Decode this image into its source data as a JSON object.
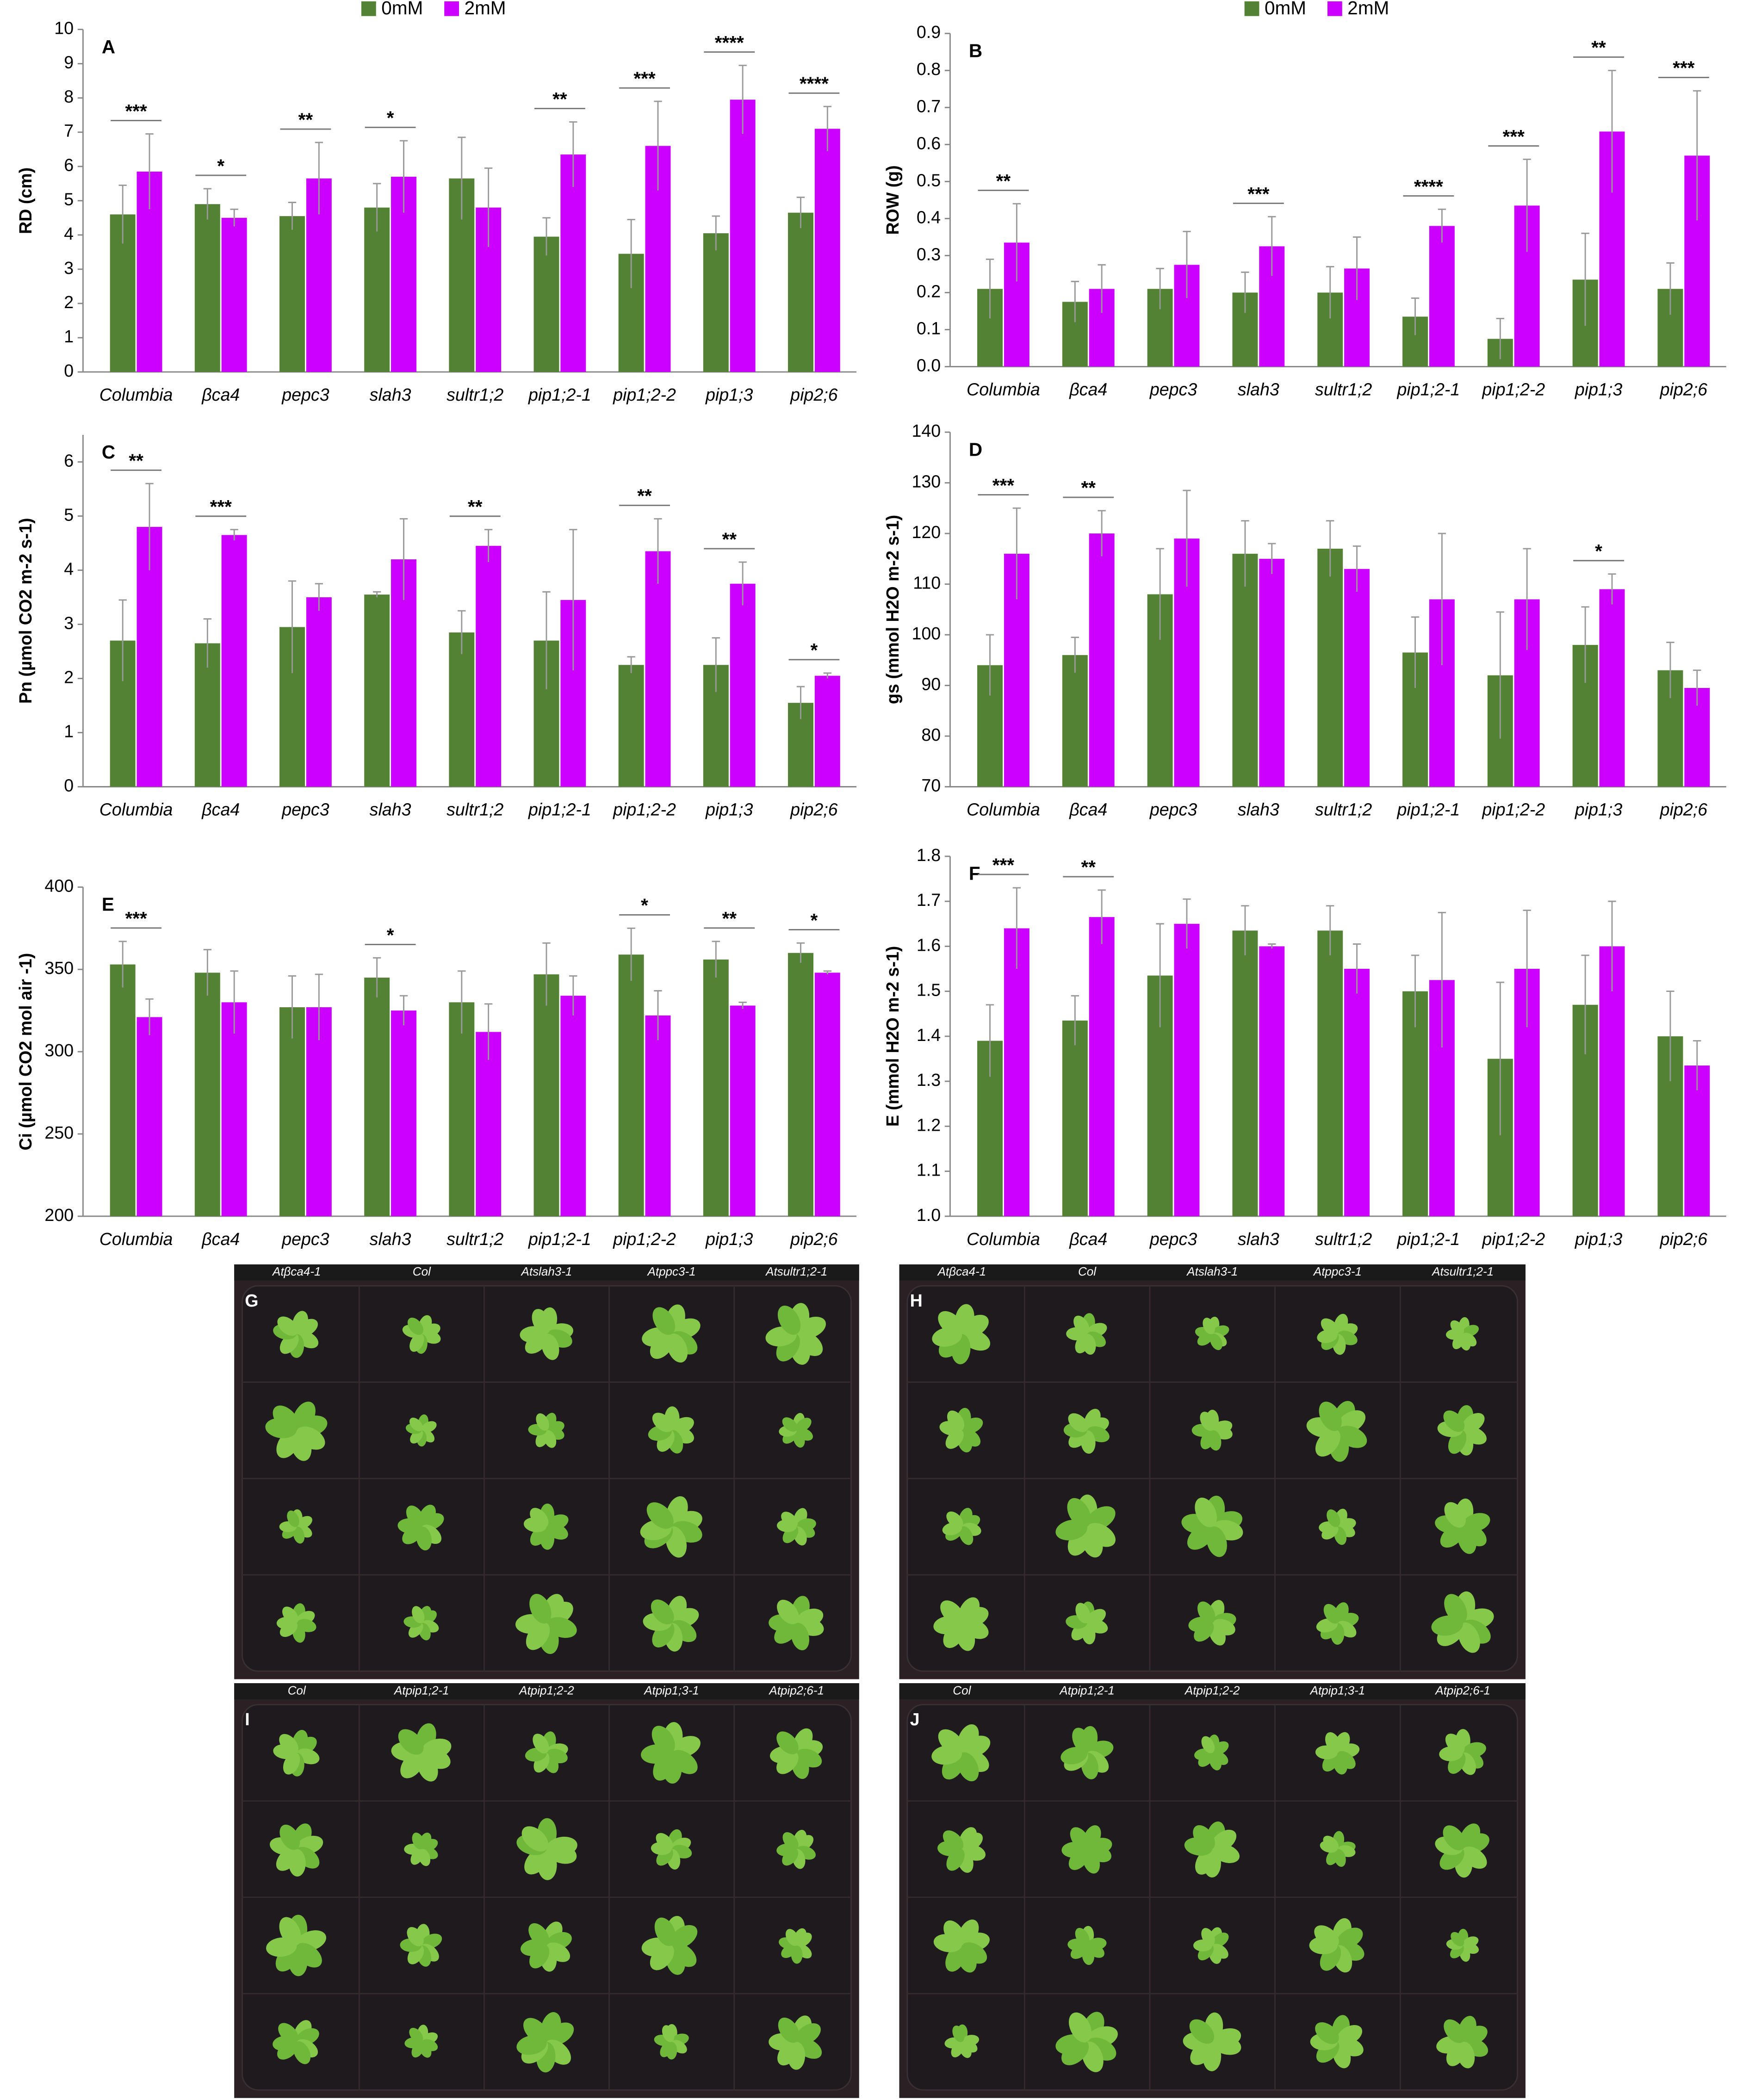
{
  "chart_data": [
    {
      "type": "bar",
      "title": "A",
      "y_label": "RD (cm)",
      "categories": [
        "Columbia",
        "βca4",
        "pepc3",
        "slah3",
        "sultr1;2",
        "pip1;2-1",
        "pip1;2-2",
        "pip1;3",
        "pip2;6"
      ],
      "series": [
        {
          "name": "0mM",
          "color": "#548235",
          "values": [
            4.6,
            4.9,
            4.55,
            4.8,
            5.65,
            3.95,
            3.45,
            4.05,
            4.65
          ],
          "errors": [
            0.85,
            0.45,
            0.4,
            0.7,
            1.2,
            0.55,
            1.0,
            0.5,
            0.45
          ]
        },
        {
          "name": "2mM",
          "color": "#cc00ff",
          "values": [
            5.85,
            4.5,
            5.65,
            5.7,
            4.8,
            6.35,
            6.6,
            7.95,
            7.1
          ],
          "errors": [
            1.1,
            0.25,
            1.05,
            1.05,
            1.15,
            0.95,
            1.3,
            1.0,
            0.65
          ]
        }
      ],
      "significance": [
        "***",
        "*",
        "**",
        "*",
        null,
        "**",
        "***",
        "****",
        "****"
      ],
      "ylim": [
        0,
        10
      ],
      "yticks": [
        0,
        1,
        2,
        3,
        4,
        5,
        6,
        7,
        8,
        9,
        10
      ]
    },
    {
      "type": "bar",
      "title": "B",
      "y_label": "ROW (g)",
      "categories": [
        "Columbia",
        "βca4",
        "pepc3",
        "slah3",
        "sultr1;2",
        "pip1;2-1",
        "pip1;2-2",
        "pip1;3",
        "pip2;6"
      ],
      "series": [
        {
          "name": "0mM",
          "color": "#548235",
          "values": [
            0.21,
            0.175,
            0.21,
            0.2,
            0.2,
            0.135,
            0.075,
            0.235,
            0.21
          ],
          "errors": [
            0.08,
            0.055,
            0.055,
            0.055,
            0.07,
            0.05,
            0.055,
            0.125,
            0.07
          ]
        },
        {
          "name": "2mM",
          "color": "#cc00ff",
          "values": [
            0.335,
            0.21,
            0.275,
            0.325,
            0.265,
            0.38,
            0.435,
            0.635,
            0.57
          ],
          "errors": [
            0.105,
            0.065,
            0.09,
            0.08,
            0.085,
            0.045,
            0.125,
            0.165,
            0.175
          ]
        }
      ],
      "significance": [
        "**",
        null,
        null,
        "***",
        null,
        "****",
        "***",
        "**",
        "***"
      ],
      "ylim": [
        0,
        0.9
      ],
      "yticks": [
        {
          "value": 0,
          "label": "0.0"
        },
        0.1,
        0.2,
        0.3,
        0.4,
        0.5,
        0.6,
        0.7,
        0.8,
        0.9
      ]
    },
    {
      "type": "bar",
      "title": "C",
      "y_label": "Pn (µmol CO2 m-2 s-1)",
      "categories": [
        "Columbia",
        "βca4",
        "pepc3",
        "slah3",
        "sultr1;2",
        "pip1;2-1",
        "pip1;2-2",
        "pip1;3",
        "pip2;6"
      ],
      "series": [
        {
          "color": "#548235",
          "values": [
            2.7,
            2.65,
            2.95,
            3.55,
            2.85,
            2.7,
            2.25,
            2.25,
            1.55
          ],
          "errors": [
            0.75,
            0.45,
            0.85,
            0.05,
            0.4,
            0.9,
            0.15,
            0.5,
            0.3
          ]
        },
        {
          "color": "#cc00ff",
          "values": [
            4.8,
            4.65,
            3.5,
            4.2,
            4.45,
            3.45,
            4.35,
            3.75,
            2.05
          ],
          "errors": [
            0.8,
            0.1,
            0.25,
            0.75,
            0.3,
            1.3,
            0.6,
            0.4,
            0.05
          ]
        }
      ],
      "significance": [
        "**",
        "***",
        null,
        null,
        "**",
        null,
        "**",
        "**",
        "*"
      ],
      "ylim": [
        0,
        6.5
      ],
      "yticks": [
        0,
        1,
        2,
        3,
        4,
        5,
        6
      ]
    },
    {
      "type": "bar",
      "title": "D",
      "y_label": "gs (mmol H2O m-2 s-1)",
      "categories": [
        "Columbia",
        "βca4",
        "pepc3",
        "slah3",
        "sultr1;2",
        "pip1;2-1",
        "pip1;2-2",
        "pip1;3",
        "pip2;6"
      ],
      "series": [
        {
          "color": "#548235",
          "values": [
            94,
            96,
            108,
            116,
            117,
            96.5,
            92,
            98,
            93
          ],
          "errors": [
            6,
            3.5,
            9,
            6.5,
            5.5,
            7,
            12.5,
            7.5,
            5.5
          ]
        },
        {
          "color": "#cc00ff",
          "values": [
            116,
            120,
            119,
            115,
            113,
            107,
            107,
            109,
            89.5
          ],
          "errors": [
            9,
            4.5,
            9.5,
            3,
            4.5,
            13,
            10,
            3,
            3.5
          ]
        }
      ],
      "significance": [
        "***",
        "**",
        null,
        null,
        null,
        null,
        null,
        "*",
        null
      ],
      "ylim": [
        70,
        140
      ],
      "yticks": [
        70,
        80,
        90,
        100,
        110,
        120,
        130,
        140
      ]
    },
    {
      "type": "bar",
      "title": "E",
      "y_label": "Ci (µmol CO2 mol air -1)",
      "categories": [
        "Columbia",
        "βca4",
        "pepc3",
        "slah3",
        "sultr1;2",
        "pip1;2-1",
        "pip1;2-2",
        "pip1;3",
        "pip2;6"
      ],
      "series": [
        {
          "color": "#548235",
          "values": [
            353,
            348,
            327,
            345,
            330,
            347,
            359,
            356,
            360
          ],
          "errors": [
            14,
            14,
            19,
            12,
            19,
            19,
            16,
            11,
            6
          ]
        },
        {
          "color": "#cc00ff",
          "values": [
            321,
            330,
            327,
            325,
            312,
            334,
            322,
            328,
            348
          ],
          "errors": [
            11,
            19,
            20,
            9,
            17,
            12,
            15,
            2,
            1
          ]
        }
      ],
      "significance": [
        "***",
        null,
        null,
        "*",
        null,
        null,
        "*",
        "**",
        "*"
      ],
      "ylim": [
        200,
        400
      ],
      "yticks": [
        200,
        250,
        300,
        350,
        400
      ]
    },
    {
      "type": "bar",
      "title": "F",
      "y_label": "E (mmol H2O m-2 s-1)",
      "categories": [
        "Columbia",
        "βca4",
        "pepc3",
        "slah3",
        "sultr1;2",
        "pip1;2-1",
        "pip1;2-2",
        "pip1;3",
        "pip2;6"
      ],
      "series": [
        {
          "color": "#548235",
          "values": [
            1.39,
            1.435,
            1.535,
            1.635,
            1.635,
            1.5,
            1.35,
            1.47,
            1.4
          ],
          "errors": [
            0.08,
            0.055,
            0.115,
            0.055,
            0.055,
            0.08,
            0.17,
            0.11,
            0.1
          ]
        },
        {
          "color": "#cc00ff",
          "values": [
            1.64,
            1.665,
            1.65,
            1.6,
            1.55,
            1.525,
            1.55,
            1.6,
            1.335
          ],
          "errors": [
            0.09,
            0.06,
            0.055,
            0.005,
            0.055,
            0.15,
            0.13,
            0.1,
            0.055
          ]
        }
      ],
      "significance": [
        "***",
        "**",
        null,
        null,
        null,
        null,
        null,
        null,
        null
      ],
      "ylim": [
        1.0,
        1.8
      ],
      "yticks": [
        {
          "value": 1.0,
          "label": "1.0"
        },
        1.1,
        1.2,
        1.3,
        1.4,
        1.5,
        1.6,
        1.7,
        1.8
      ]
    }
  ],
  "photos": [
    {
      "label": "G",
      "columns": [
        "Atβca4-1",
        "Col",
        "Atslah3-1",
        "Atppc3-1",
        "Atsultr1;2-1"
      ]
    },
    {
      "label": "H",
      "columns": [
        "Atβca4-1",
        "Col",
        "Atslah3-1",
        "Atppc3-1",
        "Atsultr1;2-1"
      ]
    },
    {
      "label": "I",
      "columns": [
        "Col",
        "Atpip1;2-1",
        "Atpip1;2-2",
        "Atpip1;3-1",
        "Atpip2;6-1"
      ]
    },
    {
      "label": "J",
      "columns": [
        "Col",
        "Atpip1;2-1",
        "Atpip1;2-2",
        "Atpip1;3-1",
        "Atpip2;6-1"
      ]
    }
  ]
}
